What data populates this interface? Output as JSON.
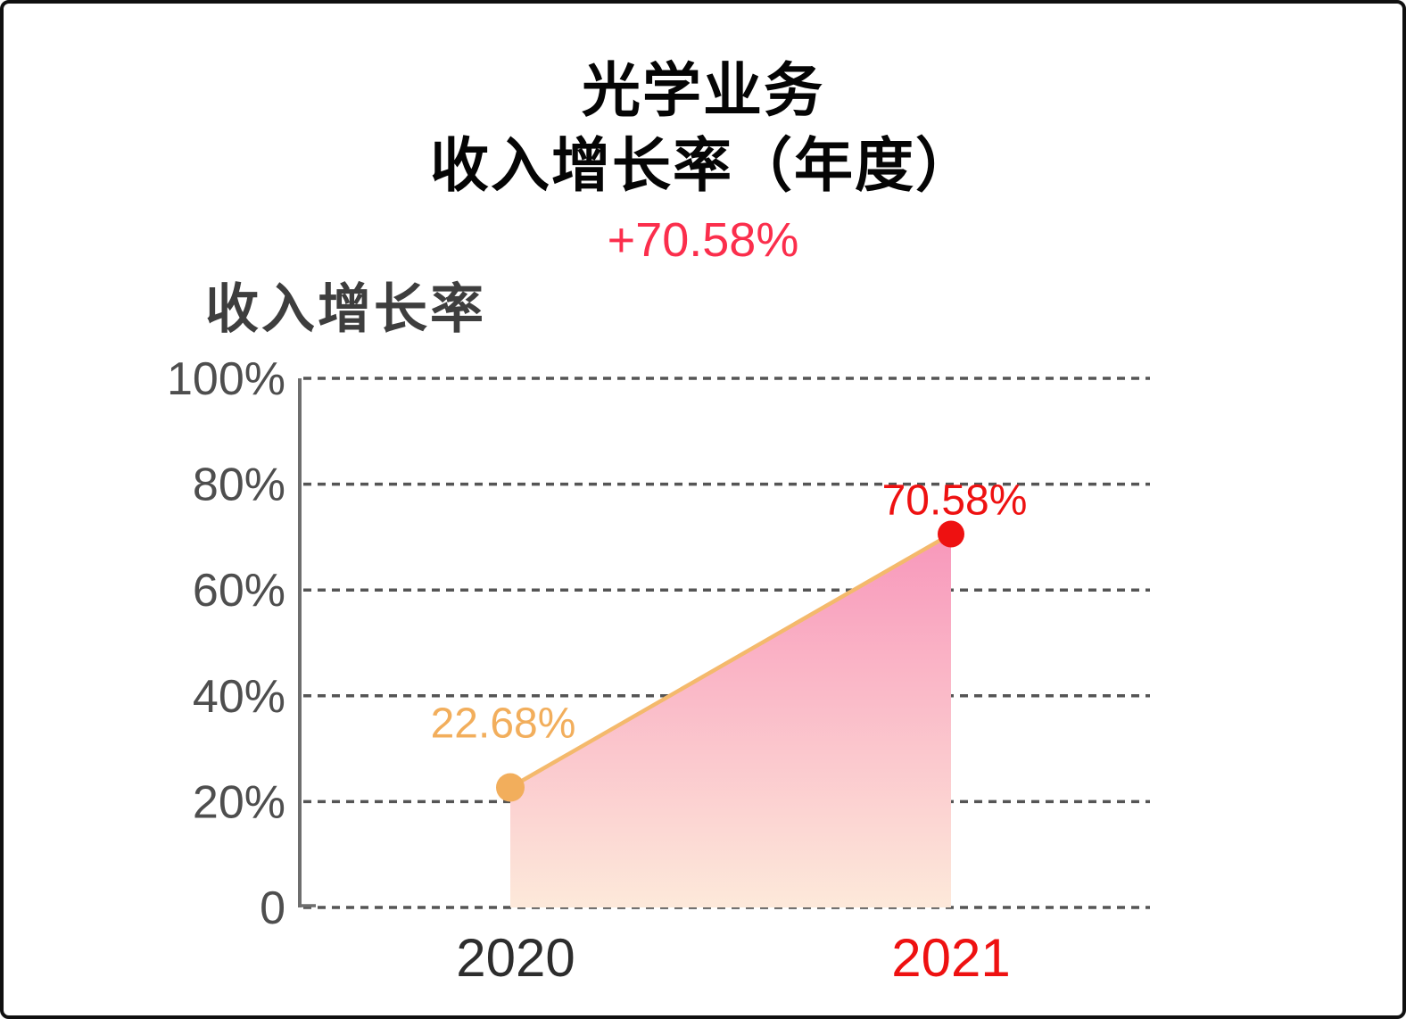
{
  "header": {
    "title_line1": "光学业务",
    "title_line2": "收入增长率（年度）",
    "change_label": "+70.58%",
    "change_color": "#FB2E4C"
  },
  "chart_data": {
    "type": "area",
    "title": "收入增长率",
    "x": [
      "2020",
      "2021"
    ],
    "series": [
      {
        "name": "收入增长率",
        "values": [
          22.68,
          70.58
        ]
      }
    ],
    "point_labels": [
      "22.68%",
      "70.58%"
    ],
    "ylim": [
      0,
      100
    ],
    "yticks": [
      100,
      80,
      60,
      40,
      20,
      0
    ],
    "ytick_labels": [
      "100%",
      "80%",
      "60%",
      "40%",
      "20%",
      "0"
    ],
    "grid": "horizontal-dashed",
    "legend": "none",
    "styles": {
      "point_colors": [
        "#F2AE5C",
        "#EE1111"
      ],
      "data_label_colors": [
        "#F2AE5C",
        "#EE1111"
      ],
      "x_label_colors": [
        "#2D2D2D",
        "#EE1111"
      ],
      "line_color": "#F4B96C",
      "area_gradient_top": "#F897BB",
      "area_gradient_bottom": "#FDE9DA",
      "grid_color": "#555555",
      "axis_color": "#6E6E6E",
      "tick_label_color": "#4E4E4E"
    }
  }
}
